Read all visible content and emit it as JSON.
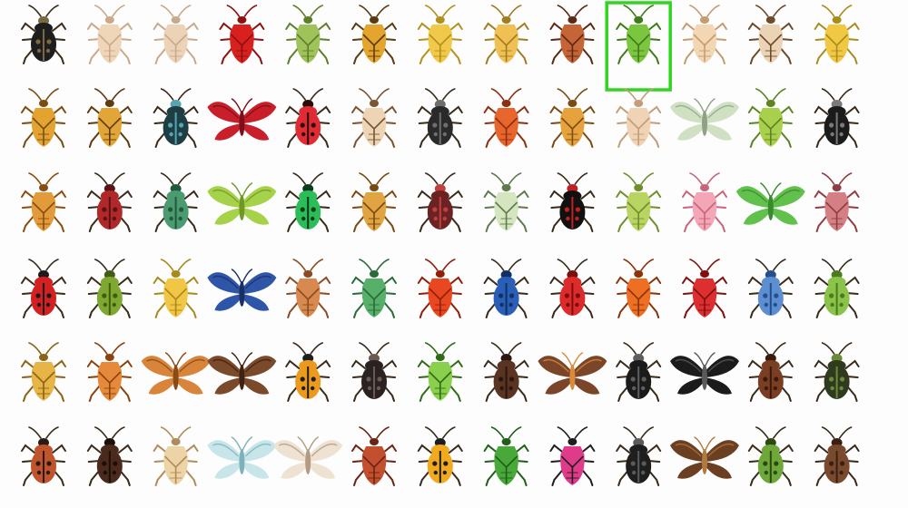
{
  "selection_color": "#2fd61f",
  "selected_index": 9,
  "rows": [
    {
      "name": "row-1",
      "items": [
        {
          "kind": "beetle",
          "c": "#1e1e1e",
          "a": "#7a6a40"
        },
        {
          "kind": "bug",
          "c": "#f0d6b8",
          "a": "#caa98a"
        },
        {
          "kind": "bug",
          "c": "#ecd3b8",
          "a": "#c9a98b"
        },
        {
          "kind": "bug",
          "c": "#d8201f",
          "a": "#8d1111"
        },
        {
          "kind": "bug",
          "c": "#9fc25a",
          "a": "#5e7e2a"
        },
        {
          "kind": "bug",
          "c": "#e3a52d",
          "a": "#5a3b10"
        },
        {
          "kind": "bug",
          "c": "#f0c94a",
          "a": "#b3901e"
        },
        {
          "kind": "bug",
          "c": "#efc053",
          "a": "#a57b22"
        },
        {
          "kind": "bug",
          "c": "#c56436",
          "a": "#5b2816"
        },
        {
          "kind": "bug",
          "c": "#7bc53f",
          "a": "#3e7c1b"
        },
        {
          "kind": "bug",
          "c": "#f3d7b4",
          "a": "#c59b70"
        },
        {
          "kind": "bug",
          "c": "#ebd3b6",
          "a": "#6e4a2c"
        },
        {
          "kind": "bug",
          "c": "#f1c844",
          "a": "#a98c1e"
        }
      ]
    },
    {
      "name": "row-2",
      "items": [
        {
          "kind": "bug",
          "c": "#e3a331",
          "a": "#7a4c12"
        },
        {
          "kind": "bug",
          "c": "#e2a638",
          "a": "#5d3b12"
        },
        {
          "kind": "beetle",
          "c": "#1e3e44",
          "a": "#57a5b2"
        },
        {
          "kind": "moth",
          "c": "#c81f2a",
          "a": "#7d0f16"
        },
        {
          "kind": "beetle",
          "c": "#df2c34",
          "a": "#2a0a0a"
        },
        {
          "kind": "bug",
          "c": "#ecd4b4",
          "a": "#7a5433"
        },
        {
          "kind": "beetle",
          "c": "#2a2a2a",
          "a": "#6e6e6e"
        },
        {
          "kind": "bug",
          "c": "#e8662c",
          "a": "#8a2f10"
        },
        {
          "kind": "bug",
          "c": "#e6a23c",
          "a": "#7a4c14"
        },
        {
          "kind": "bug",
          "c": "#f0d3b4",
          "a": "#c19d79"
        },
        {
          "kind": "moth",
          "c": "#cfe1c2",
          "a": "#8fa384"
        },
        {
          "kind": "bug",
          "c": "#a9d04c",
          "a": "#5d8424"
        },
        {
          "kind": "beetle",
          "c": "#1b1b1b",
          "a": "#7a7a7a"
        }
      ]
    },
    {
      "name": "row-3",
      "items": [
        {
          "kind": "bug",
          "c": "#e29b3b",
          "a": "#8a4c12"
        },
        {
          "kind": "beetle",
          "c": "#b0282a",
          "a": "#5a1212"
        },
        {
          "kind": "beetle",
          "c": "#4c9a6f",
          "a": "#1f5a3c"
        },
        {
          "kind": "moth",
          "c": "#a6d24a",
          "a": "#6f9725"
        },
        {
          "kind": "beetle",
          "c": "#2bbd57",
          "a": "#0d3a1b"
        },
        {
          "kind": "bug",
          "c": "#e0a441",
          "a": "#7a4812"
        },
        {
          "kind": "beetle",
          "c": "#6a2222",
          "a": "#c04040"
        },
        {
          "kind": "bug",
          "c": "#d5e5c0",
          "a": "#5f7a4c"
        },
        {
          "kind": "beetle",
          "c": "#111111",
          "a": "#c22020"
        },
        {
          "kind": "bug",
          "c": "#bad463",
          "a": "#6f8f2d"
        },
        {
          "kind": "bug",
          "c": "#f3a7b6",
          "a": "#c9647a"
        },
        {
          "kind": "moth",
          "c": "#62c04d",
          "a": "#388a2a"
        },
        {
          "kind": "bug",
          "c": "#d47f84",
          "a": "#8e3d42"
        }
      ]
    },
    {
      "name": "row-4",
      "items": [
        {
          "kind": "beetle",
          "c": "#d42020",
          "a": "#1a1a1a"
        },
        {
          "kind": "beetle",
          "c": "#7fa831",
          "a": "#3f5e14"
        },
        {
          "kind": "bug",
          "c": "#f2c645",
          "a": "#a88a1c"
        },
        {
          "kind": "moth",
          "c": "#2f55a8",
          "a": "#1a2f66"
        },
        {
          "kind": "bug",
          "c": "#d7894f",
          "a": "#8a4c22"
        },
        {
          "kind": "bug",
          "c": "#57b06a",
          "a": "#2a6a3a"
        },
        {
          "kind": "bug",
          "c": "#e9471f",
          "a": "#8f1f0a"
        },
        {
          "kind": "beetle",
          "c": "#2a5fb8",
          "a": "#123066"
        },
        {
          "kind": "beetle",
          "c": "#dd2a2a",
          "a": "#7a0f0f"
        },
        {
          "kind": "bug",
          "c": "#ee6e23",
          "a": "#8a3308"
        },
        {
          "kind": "bug",
          "c": "#dd2f2f",
          "a": "#7e1010"
        },
        {
          "kind": "beetle",
          "c": "#5d8fd0",
          "a": "#244f8a"
        },
        {
          "kind": "beetle",
          "c": "#8bc34a",
          "a": "#4c7a1e"
        }
      ]
    },
    {
      "name": "row-5",
      "items": [
        {
          "kind": "bug",
          "c": "#e7b547",
          "a": "#8a6218"
        },
        {
          "kind": "bug",
          "c": "#e58a3a",
          "a": "#8a4210"
        },
        {
          "kind": "moth",
          "c": "#d8843a",
          "a": "#8a4a14"
        },
        {
          "kind": "moth",
          "c": "#7a4a2a",
          "a": "#3f2212"
        },
        {
          "kind": "beetle",
          "c": "#ec9a1e",
          "a": "#1e1e1e"
        },
        {
          "kind": "beetle",
          "c": "#2a2222",
          "a": "#6a5a52"
        },
        {
          "kind": "bug",
          "c": "#8bd04d",
          "a": "#2f6b17"
        },
        {
          "kind": "beetle",
          "c": "#5a3422",
          "a": "#2a160e"
        },
        {
          "kind": "moth",
          "c": "#7a4528",
          "a": "#d98a3a"
        },
        {
          "kind": "beetle",
          "c": "#1b1b1b",
          "a": "#5e5e5e"
        },
        {
          "kind": "moth",
          "c": "#1b1b1b",
          "a": "#5a5a5a"
        },
        {
          "kind": "beetle",
          "c": "#7a3e22",
          "a": "#3a1a0d"
        },
        {
          "kind": "beetle",
          "c": "#2f3a1f",
          "a": "#6b8a3a"
        }
      ]
    },
    {
      "name": "row-6",
      "items": [
        {
          "kind": "beetle",
          "c": "#c0542a",
          "a": "#2a1a12"
        },
        {
          "kind": "beetle",
          "c": "#4a2a1c",
          "a": "#1c0f08"
        },
        {
          "kind": "bug",
          "c": "#ecd4a6",
          "a": "#b38b5a"
        },
        {
          "kind": "moth",
          "c": "#c8e6ea",
          "a": "#7fb1ba"
        },
        {
          "kind": "moth",
          "c": "#eee2d3",
          "a": "#b39a82"
        },
        {
          "kind": "bug",
          "c": "#c24f2e",
          "a": "#6a2412"
        },
        {
          "kind": "beetle",
          "c": "#f1a91f",
          "a": "#1e1e1e"
        },
        {
          "kind": "bug",
          "c": "#49a83a",
          "a": "#1f5f17"
        },
        {
          "kind": "bug",
          "c": "#e03a8a",
          "a": "#1e1e1e"
        },
        {
          "kind": "beetle",
          "c": "#1e1e1e",
          "a": "#5a5a5a"
        },
        {
          "kind": "moth",
          "c": "#6a3f22",
          "a": "#b07a3e"
        },
        {
          "kind": "beetle",
          "c": "#6fa83a",
          "a": "#2a4a12"
        },
        {
          "kind": "beetle",
          "c": "#7a4a2e",
          "a": "#3a2012"
        }
      ]
    }
  ]
}
